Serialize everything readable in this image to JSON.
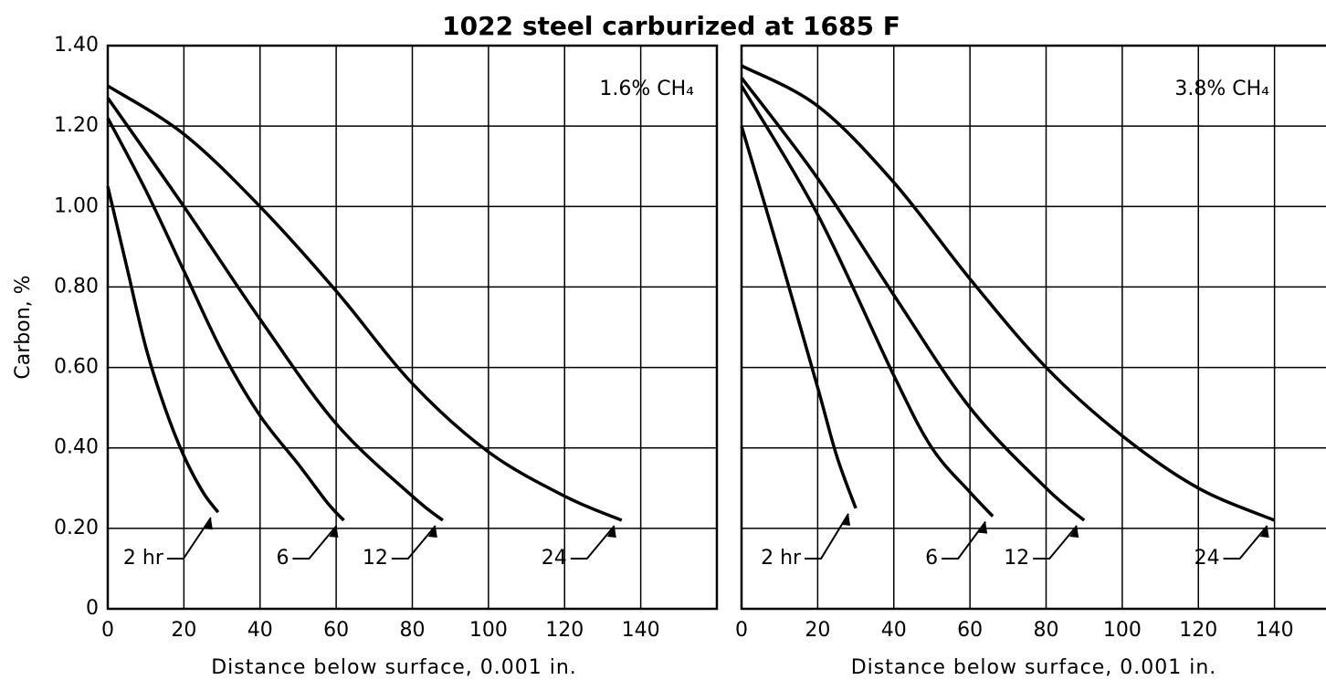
{
  "title": "1022 steel carburized at 1685 F",
  "chart_data": [
    {
      "type": "line",
      "annotation": "1.6% CH₄",
      "ylabel": "Carbon, %",
      "xlabel": "Distance below surface, 0.001 in.",
      "xlim": [
        0,
        160
      ],
      "ylim": [
        0,
        1.4
      ],
      "grid": true,
      "color": "#000000",
      "xticks": [
        0,
        20,
        40,
        60,
        80,
        100,
        120,
        140
      ],
      "yticks": [
        0,
        {
          "value": 0.2,
          "label": "0.20"
        },
        {
          "value": 0.4,
          "label": "0.40"
        },
        {
          "value": 0.6,
          "label": "0.60"
        },
        {
          "value": 0.8,
          "label": "0.80"
        },
        {
          "value": 1.0,
          "label": "1.00"
        },
        {
          "value": 1.2,
          "label": "1.20"
        },
        {
          "value": 1.4,
          "label": "1.40"
        }
      ],
      "series": [
        {
          "name": "2 hr",
          "x": [
            0,
            5,
            10,
            15,
            20,
            25,
            29
          ],
          "values": [
            1.05,
            0.85,
            0.65,
            0.5,
            0.38,
            0.29,
            0.24
          ]
        },
        {
          "name": "6",
          "x": [
            0,
            10,
            20,
            30,
            40,
            50,
            58,
            62
          ],
          "values": [
            1.22,
            1.04,
            0.84,
            0.64,
            0.48,
            0.36,
            0.26,
            0.22
          ]
        },
        {
          "name": "12",
          "x": [
            0,
            20,
            40,
            60,
            80,
            88
          ],
          "values": [
            1.27,
            1.0,
            0.72,
            0.46,
            0.28,
            0.22
          ]
        },
        {
          "name": "24",
          "x": [
            0,
            20,
            40,
            60,
            80,
            100,
            120,
            135
          ],
          "values": [
            1.3,
            1.18,
            1.0,
            0.79,
            0.56,
            0.39,
            0.28,
            0.22
          ]
        }
      ]
    },
    {
      "type": "line",
      "annotation": "3.8% CH₄",
      "xlabel": "Distance below surface, 0.001 in.",
      "xlim": [
        0,
        160
      ],
      "ylim": [
        0,
        1.4
      ],
      "grid": true,
      "color": "#000000",
      "xticks": [
        0,
        20,
        40,
        60,
        80,
        100,
        120,
        140
      ],
      "yticks": [
        0,
        0.2,
        0.4,
        0.6,
        0.8,
        1.0,
        1.2,
        1.4
      ],
      "series": [
        {
          "name": "2 hr",
          "x": [
            0,
            10,
            20,
            25,
            30
          ],
          "values": [
            1.2,
            0.88,
            0.55,
            0.38,
            0.25
          ]
        },
        {
          "name": "6",
          "x": [
            0,
            20,
            40,
            50,
            60,
            66
          ],
          "values": [
            1.3,
            0.98,
            0.58,
            0.4,
            0.29,
            0.23
          ]
        },
        {
          "name": "12",
          "x": [
            0,
            20,
            40,
            60,
            80,
            90
          ],
          "values": [
            1.32,
            1.07,
            0.78,
            0.5,
            0.3,
            0.22
          ]
        },
        {
          "name": "24",
          "x": [
            0,
            20,
            40,
            60,
            80,
            100,
            120,
            140
          ],
          "values": [
            1.35,
            1.25,
            1.06,
            0.82,
            0.6,
            0.43,
            0.3,
            0.22
          ]
        }
      ]
    }
  ]
}
